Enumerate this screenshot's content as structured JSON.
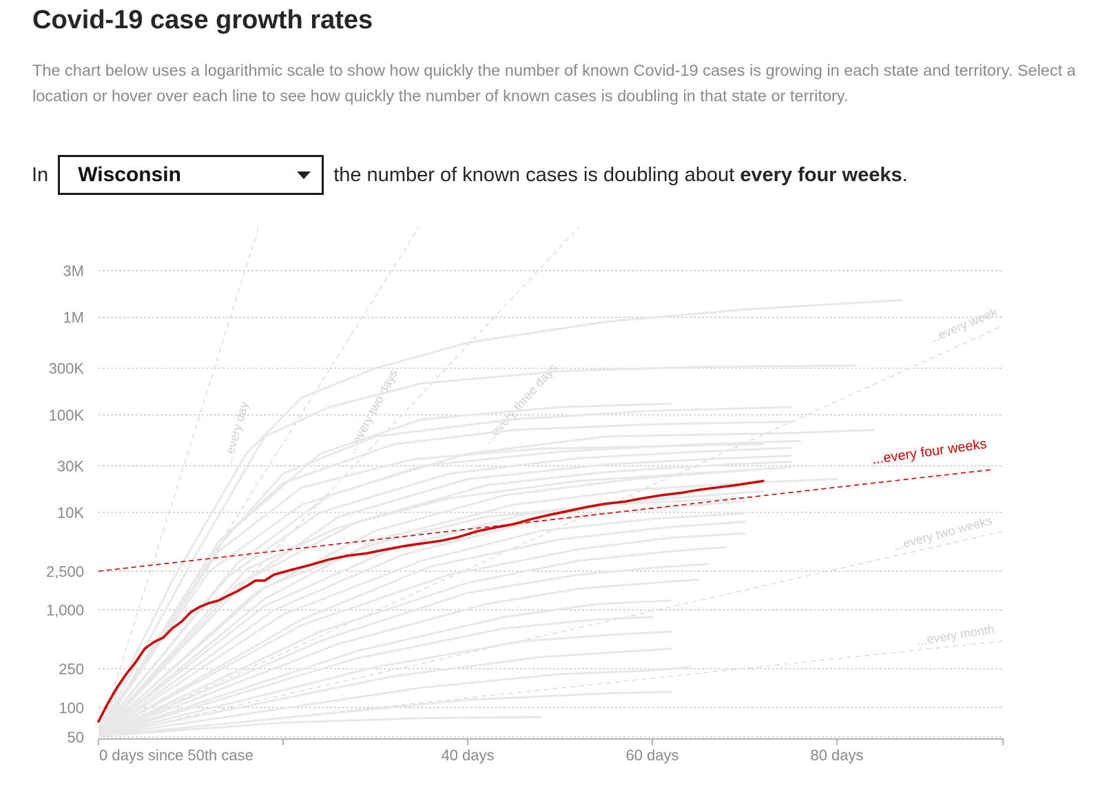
{
  "title": "Covid-19 case growth rates",
  "intro": "The chart below uses a logarithmic scale to show how quickly the number of known Covid-19 cases is growing in each state and territory. Select a location or hover over each line to see how quickly the number of known cases is doubling in that state or territory.",
  "selector": {
    "prefix": "In",
    "selected": "Wisconsin",
    "middle": "the number of known cases is doubling about",
    "rate": "every four weeks",
    "suffix": "."
  },
  "colors": {
    "highlight": "#cc0000",
    "background_lines": "#e8e8e8",
    "reference_lines": "#d6d6d6",
    "grid": "#bdbdbd",
    "text_muted": "#8a8a8a"
  },
  "chart_data": {
    "type": "line",
    "y_scale": "log",
    "ylim": [
      50,
      4500000
    ],
    "xlim": [
      0,
      98
    ],
    "y_ticks": [
      {
        "value": 3000000,
        "label": "3M"
      },
      {
        "value": 1000000,
        "label": "1M"
      },
      {
        "value": 300000,
        "label": "300K"
      },
      {
        "value": 100000,
        "label": "100K"
      },
      {
        "value": 30000,
        "label": "30K"
      },
      {
        "value": 10000,
        "label": "10K"
      },
      {
        "value": 2500,
        "label": "2,500"
      },
      {
        "value": 1000,
        "label": "1,000"
      },
      {
        "value": 250,
        "label": "250"
      },
      {
        "value": 100,
        "label": "100"
      },
      {
        "value": 50,
        "label": "50"
      }
    ],
    "x_ticks": [
      {
        "value": 0,
        "label": "0 days since 50th case"
      },
      {
        "value": 20,
        "label": ""
      },
      {
        "value": 40,
        "label": "40 days"
      },
      {
        "value": 60,
        "label": "60 days"
      },
      {
        "value": 80,
        "label": "80 days"
      },
      {
        "value": 98,
        "label": ""
      }
    ],
    "reference_lines": [
      {
        "label": "...every day",
        "doubling_days": 1
      },
      {
        "label": "...every two days",
        "doubling_days": 2
      },
      {
        "label": "...every three days",
        "doubling_days": 3
      },
      {
        "label": "...every week",
        "doubling_days": 7
      },
      {
        "label": "...every two weeks",
        "doubling_days": 14
      },
      {
        "label": "...every month",
        "doubling_days": 30
      }
    ],
    "highlight_reference": {
      "label": "...every four weeks",
      "start_value": 2500
    },
    "highlight_series": {
      "name": "Wisconsin",
      "points": [
        [
          0,
          72
        ],
        [
          1,
          110
        ],
        [
          2,
          160
        ],
        [
          3,
          220
        ],
        [
          4,
          290
        ],
        [
          5,
          400
        ],
        [
          6,
          470
        ],
        [
          7,
          520
        ],
        [
          8,
          650
        ],
        [
          9,
          760
        ],
        [
          10,
          950
        ],
        [
          11,
          1080
        ],
        [
          12,
          1180
        ],
        [
          13,
          1250
        ],
        [
          14,
          1400
        ],
        [
          15,
          1550
        ],
        [
          16,
          1750
        ],
        [
          17,
          2000
        ],
        [
          18,
          2000
        ],
        [
          19,
          2300
        ],
        [
          21,
          2600
        ],
        [
          23,
          2900
        ],
        [
          25,
          3300
        ],
        [
          27,
          3600
        ],
        [
          29,
          3800
        ],
        [
          31,
          4150
        ],
        [
          33,
          4500
        ],
        [
          35,
          4800
        ],
        [
          37,
          5100
        ],
        [
          39,
          5600
        ],
        [
          41,
          6400
        ],
        [
          43,
          7000
        ],
        [
          45,
          7600
        ],
        [
          47,
          8600
        ],
        [
          49,
          9500
        ],
        [
          51,
          10400
        ],
        [
          53,
          11400
        ],
        [
          55,
          12300
        ],
        [
          57,
          12900
        ],
        [
          59,
          14000
        ],
        [
          61,
          15000
        ],
        [
          63,
          15800
        ],
        [
          65,
          17000
        ],
        [
          67,
          18000
        ],
        [
          69,
          19000
        ],
        [
          71,
          20300
        ],
        [
          72,
          21000
        ]
      ]
    },
    "background_series": [
      {
        "points": [
          [
            0,
            60
          ],
          [
            8,
            2000
          ],
          [
            16,
            40000
          ],
          [
            22,
            150000
          ],
          [
            30,
            300000
          ],
          [
            40,
            550000
          ],
          [
            55,
            900000
          ],
          [
            70,
            1200000
          ],
          [
            87,
            1500000
          ]
        ]
      },
      {
        "points": [
          [
            0,
            55
          ],
          [
            10,
            3000
          ],
          [
            18,
            60000
          ],
          [
            25,
            120000
          ],
          [
            35,
            210000
          ],
          [
            50,
            280000
          ],
          [
            65,
            310000
          ],
          [
            82,
            320000
          ]
        ]
      },
      {
        "points": [
          [
            0,
            55
          ],
          [
            12,
            3500
          ],
          [
            20,
            25000
          ],
          [
            30,
            60000
          ],
          [
            45,
            90000
          ],
          [
            60,
            110000
          ],
          [
            75,
            120000
          ]
        ]
      },
      {
        "points": [
          [
            0,
            55
          ],
          [
            13,
            5000
          ],
          [
            20,
            20000
          ],
          [
            32,
            50000
          ],
          [
            45,
            70000
          ],
          [
            60,
            80000
          ],
          [
            75,
            85000
          ]
        ]
      },
      {
        "points": [
          [
            0,
            55
          ],
          [
            15,
            3000
          ],
          [
            25,
            15000
          ],
          [
            40,
            40000
          ],
          [
            55,
            60000
          ],
          [
            75,
            65000
          ],
          [
            84,
            70000
          ]
        ]
      },
      {
        "points": [
          [
            0,
            55
          ],
          [
            12,
            2500
          ],
          [
            22,
            12000
          ],
          [
            35,
            30000
          ],
          [
            50,
            42000
          ],
          [
            65,
            50000
          ],
          [
            76,
            54000
          ]
        ]
      },
      {
        "points": [
          [
            0,
            55
          ],
          [
            14,
            2200
          ],
          [
            24,
            10000
          ],
          [
            38,
            25000
          ],
          [
            52,
            36000
          ],
          [
            65,
            42000
          ],
          [
            75,
            46000
          ]
        ]
      },
      {
        "points": [
          [
            0,
            52
          ],
          [
            16,
            2000
          ],
          [
            26,
            9000
          ],
          [
            40,
            22000
          ],
          [
            55,
            31000
          ],
          [
            68,
            36000
          ],
          [
            75,
            38000
          ]
        ]
      },
      {
        "points": [
          [
            0,
            52
          ],
          [
            15,
            1800
          ],
          [
            28,
            8000
          ],
          [
            42,
            19000
          ],
          [
            55,
            26000
          ],
          [
            68,
            31000
          ],
          [
            75,
            33000
          ]
        ]
      },
      {
        "points": [
          [
            0,
            52
          ],
          [
            17,
            1500
          ],
          [
            30,
            6500
          ],
          [
            44,
            15000
          ],
          [
            58,
            22000
          ],
          [
            70,
            27000
          ],
          [
            75,
            29000
          ]
        ]
      },
      {
        "points": [
          [
            0,
            52
          ],
          [
            18,
            1300
          ],
          [
            30,
            5200
          ],
          [
            45,
            12000
          ],
          [
            58,
            17000
          ],
          [
            70,
            20000
          ],
          [
            80,
            22000
          ]
        ]
      },
      {
        "points": [
          [
            0,
            52
          ],
          [
            18,
            1100
          ],
          [
            32,
            4300
          ],
          [
            46,
            9500
          ],
          [
            60,
            13500
          ],
          [
            72,
            16500
          ]
        ]
      },
      {
        "points": [
          [
            0,
            51
          ],
          [
            19,
            1000
          ],
          [
            33,
            3700
          ],
          [
            47,
            8000
          ],
          [
            60,
            11000
          ],
          [
            70,
            13000
          ]
        ]
      },
      {
        "points": [
          [
            0,
            51
          ],
          [
            20,
            900
          ],
          [
            35,
            3200
          ],
          [
            48,
            6500
          ],
          [
            60,
            8600
          ],
          [
            70,
            9800
          ]
        ]
      },
      {
        "points": [
          [
            0,
            51
          ],
          [
            22,
            800
          ],
          [
            36,
            2800
          ],
          [
            50,
            5300
          ],
          [
            62,
            7100
          ],
          [
            70,
            8000
          ]
        ]
      },
      {
        "points": [
          [
            0,
            51
          ],
          [
            22,
            700
          ],
          [
            38,
            2300
          ],
          [
            52,
            4200
          ],
          [
            62,
            5500
          ],
          [
            70,
            6100
          ]
        ]
      },
      {
        "points": [
          [
            0,
            51
          ],
          [
            24,
            600
          ],
          [
            40,
            1900
          ],
          [
            52,
            3200
          ],
          [
            62,
            4000
          ],
          [
            68,
            4400
          ]
        ]
      },
      {
        "points": [
          [
            0,
            51
          ],
          [
            25,
            520
          ],
          [
            40,
            1500
          ],
          [
            52,
            2300
          ],
          [
            60,
            2700
          ],
          [
            66,
            2950
          ]
        ]
      },
      {
        "points": [
          [
            0,
            51
          ],
          [
            26,
            450
          ],
          [
            42,
            1150
          ],
          [
            52,
            1650
          ],
          [
            60,
            1900
          ],
          [
            65,
            2050
          ]
        ]
      },
      {
        "points": [
          [
            0,
            51
          ],
          [
            28,
            380
          ],
          [
            44,
            850
          ],
          [
            54,
            1150
          ],
          [
            62,
            1250
          ]
        ]
      },
      {
        "points": [
          [
            0,
            51
          ],
          [
            28,
            320
          ],
          [
            44,
            650
          ],
          [
            54,
            800
          ],
          [
            60,
            850
          ]
        ]
      },
      {
        "points": [
          [
            0,
            51
          ],
          [
            30,
            260
          ],
          [
            46,
            480
          ],
          [
            56,
            560
          ],
          [
            62,
            600
          ]
        ]
      },
      {
        "points": [
          [
            0,
            51
          ],
          [
            32,
            210
          ],
          [
            48,
            330
          ],
          [
            58,
            380
          ],
          [
            62,
            400
          ]
        ]
      },
      {
        "points": [
          [
            0,
            51
          ],
          [
            35,
            160
          ],
          [
            50,
            220
          ],
          [
            60,
            240
          ],
          [
            64,
            260
          ]
        ]
      },
      {
        "points": [
          [
            0,
            51
          ],
          [
            40,
            120
          ],
          [
            55,
            140
          ],
          [
            62,
            145
          ]
        ]
      },
      {
        "points": [
          [
            0,
            51
          ],
          [
            20,
            70
          ],
          [
            35,
            78
          ],
          [
            48,
            80
          ]
        ]
      },
      {
        "points": [
          [
            0,
            55
          ],
          [
            14,
            6000
          ],
          [
            24,
            40000
          ],
          [
            35,
            90000
          ],
          [
            50,
            120000
          ],
          [
            62,
            130000
          ]
        ]
      },
      {
        "points": [
          [
            0,
            55
          ],
          [
            13,
            4000
          ],
          [
            22,
            18000
          ],
          [
            34,
            35000
          ],
          [
            48,
            45000
          ],
          [
            62,
            48000
          ],
          [
            72,
            50000
          ]
        ]
      },
      {
        "points": [
          [
            0,
            53
          ],
          [
            16,
            2600
          ],
          [
            26,
            7000
          ],
          [
            38,
            14000
          ],
          [
            52,
            21000
          ],
          [
            64,
            25000
          ],
          [
            70,
            27000
          ]
        ]
      },
      {
        "points": [
          [
            0,
            53
          ],
          [
            18,
            1700
          ],
          [
            30,
            4800
          ],
          [
            42,
            9000
          ],
          [
            55,
            12000
          ],
          [
            66,
            13500
          ],
          [
            70,
            14000
          ]
        ]
      }
    ]
  }
}
